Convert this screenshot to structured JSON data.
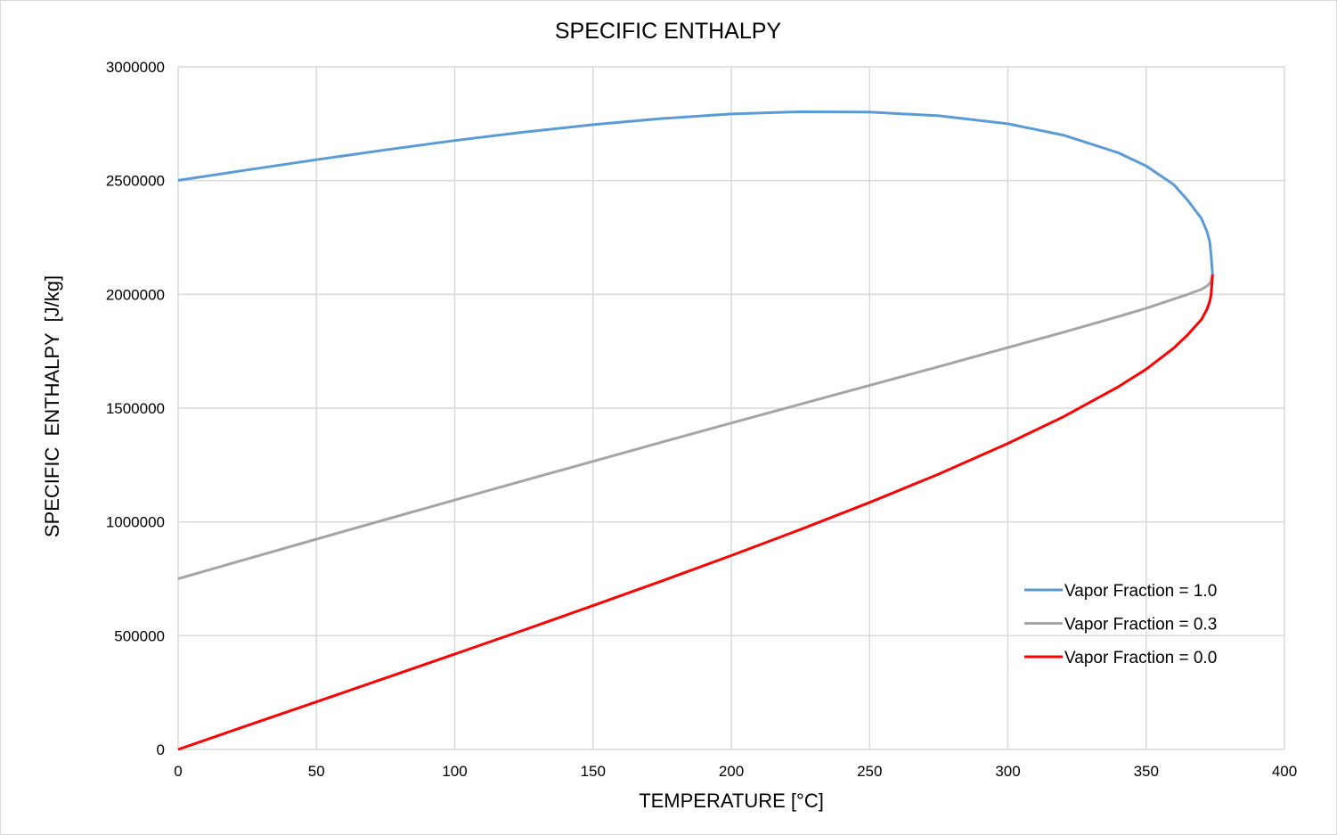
{
  "chart_data": {
    "type": "line",
    "title": "SPECIFIC ENTHALPY",
    "xlabel": "TEMPERATURE [°C]",
    "ylabel": "SPECIFIC  ENTHALPY  [J/kg]",
    "xlim": [
      0,
      400
    ],
    "ylim": [
      0,
      3000000
    ],
    "xticks": [
      0,
      50,
      100,
      150,
      200,
      250,
      300,
      350,
      400
    ],
    "yticks": [
      0,
      500000,
      1000000,
      1500000,
      2000000,
      2500000,
      3000000
    ],
    "grid": true,
    "legend_position": "bottom-right",
    "x": [
      0,
      25,
      50,
      75,
      100,
      125,
      150,
      175,
      200,
      225,
      250,
      275,
      300,
      320,
      340,
      350,
      360,
      365,
      370,
      372,
      373,
      373.5,
      374
    ],
    "series": [
      {
        "name": "Vapor Fraction = 1.0",
        "color": "#5b9bd5",
        "values": [
          2501000,
          2547000,
          2592000,
          2635000,
          2676000,
          2713000,
          2746000,
          2773000,
          2793000,
          2802500,
          2801000,
          2785000,
          2749600,
          2700000,
          2622000,
          2564000,
          2482000,
          2414000,
          2333000,
          2275000,
          2230000,
          2170000,
          2087000
        ]
      },
      {
        "name": "Vapor Fraction = 0.3",
        "color": "#a5a5a5",
        "values": [
          750300,
          837500,
          924100,
          1010300,
          1096200,
          1181400,
          1266300,
          1350600,
          1434500,
          1517400,
          1600400,
          1682500,
          1766200,
          1833200,
          1902800,
          1938900,
          1979400,
          1999600,
          2022500,
          2037000,
          2048000,
          2060000,
          2087000
        ]
      },
      {
        "name": "Vapor Fraction = 0.0",
        "color": "#ff0000",
        "values": [
          0,
          104800,
          209300,
          314000,
          419100,
          525000,
          632200,
          741000,
          852300,
          966700,
          1085800,
          1210100,
          1344800,
          1461700,
          1594500,
          1671000,
          1764000,
          1822000,
          1890000,
          1935000,
          1970000,
          2000000,
          2087000
        ]
      }
    ]
  }
}
